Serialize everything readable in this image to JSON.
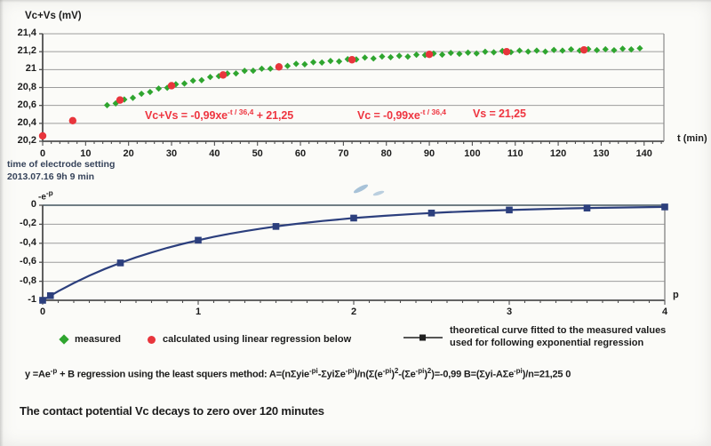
{
  "colors": {
    "measured_green": "#2fa52f",
    "calculated_red": "#e8353c",
    "curve_navy": "#2c3f7d",
    "eq_red": "#ee3540",
    "text": "#1c1c1c",
    "note_blue": "#36435a",
    "grid": "#9c9c9c",
    "axis": "#4f4f4f",
    "frame": "#8a8a8a",
    "dark_grid": "#5d6d75",
    "legend_line": "#1f1f1f",
    "smudge_blue": "#7aa3c6"
  },
  "chart_data": [
    {
      "type": "scatter",
      "title": "Vc+Vs (mV)",
      "xlabel": "t (min)",
      "ylabel": "Vc+Vs (mV)",
      "xlim": [
        0,
        145
      ],
      "ylim": [
        20.2,
        21.4
      ],
      "grid": true,
      "x_ticks": [
        0,
        10,
        20,
        30,
        40,
        50,
        60,
        70,
        80,
        90,
        100,
        110,
        120,
        130,
        140
      ],
      "x_tick_labels": [
        "0",
        "10",
        "20",
        "30",
        "40",
        "50",
        "60",
        "70",
        "80",
        "90",
        "100",
        "110",
        "120",
        "130",
        "140"
      ],
      "y_ticks": [
        21.4,
        21.2,
        21.0,
        20.8,
        20.6,
        20.4,
        20.2
      ],
      "y_tick_labels": [
        "21,4",
        "21,2",
        "21",
        "20,8",
        "20,6",
        "20,4",
        "20,2"
      ],
      "annotations": [
        {
          "pre": "Vc+Vs = -0,99xe",
          "sup": "-t / 36,4",
          "post": " + 21,25"
        },
        {
          "pre": "Vc = -0,99xe",
          "sup": "-t / 36,4",
          "post": ""
        },
        {
          "pre": "Vs = 21,25",
          "sup": "",
          "post": ""
        }
      ],
      "series": [
        {
          "name": "measured",
          "marker": "diamond",
          "color_key": "measured_green",
          "points": [
            [
              15,
              20.603
            ],
            [
              17,
              20.623
            ],
            [
              19,
              20.666
            ],
            [
              21,
              20.685
            ],
            [
              23,
              20.73
            ],
            [
              25,
              20.75
            ],
            [
              27,
              20.788
            ],
            [
              29,
              20.797
            ],
            [
              31,
              20.836
            ],
            [
              33,
              20.845
            ],
            [
              35,
              20.876
            ],
            [
              37,
              20.882
            ],
            [
              39,
              20.917
            ],
            [
              41,
              20.927
            ],
            [
              43,
              20.956
            ],
            [
              45,
              20.957
            ],
            [
              47,
              20.986
            ],
            [
              49,
              20.987
            ],
            [
              51,
              21.01
            ],
            [
              53,
              21.01
            ],
            [
              55,
              21.039
            ],
            [
              57,
              21.041
            ],
            [
              59,
              21.064
            ],
            [
              61,
              21.059
            ],
            [
              63,
              21.083
            ],
            [
              65,
              21.079
            ],
            [
              67,
              21.096
            ],
            [
              69,
              21.091
            ],
            [
              71,
              21.116
            ],
            [
              73,
              21.114
            ],
            [
              75,
              21.134
            ],
            [
              77,
              21.124
            ],
            [
              79,
              21.146
            ],
            [
              81,
              21.138
            ],
            [
              83,
              21.153
            ],
            [
              85,
              21.145
            ],
            [
              87,
              21.166
            ],
            [
              89,
              21.162
            ],
            [
              91,
              21.179
            ],
            [
              93,
              21.167
            ],
            [
              95,
              21.186
            ],
            [
              97,
              21.176
            ],
            [
              99,
              21.189
            ],
            [
              101,
              21.18
            ],
            [
              103,
              21.199
            ],
            [
              105,
              21.193
            ],
            [
              107,
              21.208
            ],
            [
              109,
              21.195
            ],
            [
              111,
              21.212
            ],
            [
              113,
              21.201
            ],
            [
              115,
              21.212
            ],
            [
              117,
              21.201
            ],
            [
              119,
              21.219
            ],
            [
              121,
              21.212
            ],
            [
              123,
              21.226
            ],
            [
              125,
              21.212
            ],
            [
              127,
              21.229
            ],
            [
              129,
              21.217
            ],
            [
              131,
              21.227
            ],
            [
              133,
              21.216
            ],
            [
              135,
              21.233
            ],
            [
              137,
              21.225
            ],
            [
              139,
              21.238
            ]
          ]
        },
        {
          "name": "calculated using linear regression below",
          "marker": "circle",
          "color_key": "calculated_red",
          "points": [
            [
              0,
              20.26
            ],
            [
              7,
              20.43
            ],
            [
              18,
              20.66
            ],
            [
              30,
              20.82
            ],
            [
              42,
              20.94
            ],
            [
              55,
              21.03
            ],
            [
              72,
              21.11
            ],
            [
              90,
              21.17
            ],
            [
              108,
              21.2
            ],
            [
              126,
              21.22
            ]
          ]
        }
      ]
    },
    {
      "type": "line",
      "title": "",
      "xlabel": "p",
      "ylabel": "-e^-p",
      "ylabel_rich": {
        "pre": "-e",
        "sup": "-p",
        "post": ""
      },
      "xlim": [
        0,
        4
      ],
      "ylim": [
        -1,
        0
      ],
      "grid": true,
      "x_ticks": [
        0,
        1,
        2,
        3,
        4
      ],
      "x_tick_labels": [
        "0",
        "1",
        "2",
        "3",
        "4"
      ],
      "y_ticks": [
        0,
        -0.2,
        -0.4,
        -0.6,
        -0.8,
        -1
      ],
      "y_tick_labels": [
        "0",
        "-0,2",
        "-0,4",
        "-0,6",
        "-0,8",
        "-1"
      ],
      "series": [
        {
          "name": "theoretical curve fitted to the measured values used for following exponential regression",
          "marker": "square",
          "color_key": "curve_navy",
          "curve": [
            [
              0,
              -1.0
            ],
            [
              0.1,
              -0.905
            ],
            [
              0.2,
              -0.819
            ],
            [
              0.3,
              -0.741
            ],
            [
              0.4,
              -0.67
            ],
            [
              0.5,
              -0.607
            ],
            [
              0.6,
              -0.549
            ],
            [
              0.7,
              -0.497
            ],
            [
              0.8,
              -0.449
            ],
            [
              0.9,
              -0.407
            ],
            [
              1.0,
              -0.368
            ],
            [
              1.1,
              -0.333
            ],
            [
              1.2,
              -0.301
            ],
            [
              1.3,
              -0.273
            ],
            [
              1.4,
              -0.247
            ],
            [
              1.5,
              -0.223
            ],
            [
              1.6,
              -0.202
            ],
            [
              1.7,
              -0.183
            ],
            [
              1.8,
              -0.165
            ],
            [
              1.9,
              -0.15
            ],
            [
              2.0,
              -0.135
            ],
            [
              2.2,
              -0.111
            ],
            [
              2.4,
              -0.091
            ],
            [
              2.6,
              -0.074
            ],
            [
              2.8,
              -0.061
            ],
            [
              3.0,
              -0.05
            ],
            [
              3.2,
              -0.041
            ],
            [
              3.4,
              -0.033
            ],
            [
              3.6,
              -0.027
            ],
            [
              3.8,
              -0.022
            ],
            [
              4.0,
              -0.018
            ]
          ],
          "marker_points": [
            [
              0,
              -1.0
            ],
            [
              0.05,
              -0.951
            ],
            [
              0.5,
              -0.607
            ],
            [
              1.0,
              -0.368
            ],
            [
              1.5,
              -0.223
            ],
            [
              2.0,
              -0.135
            ],
            [
              2.5,
              -0.082
            ],
            [
              3.0,
              -0.05
            ],
            [
              3.5,
              -0.03
            ],
            [
              4.0,
              -0.018
            ]
          ]
        }
      ]
    }
  ],
  "notes": {
    "line1": "time of electrode setting",
    "line2": "2013.07.16 9h 9 min"
  },
  "legend": {
    "measured": "measured",
    "calculated": "calculated using linear regression below",
    "theoretical_line1": "theoretical curve fitted to the measured values",
    "theoretical_line2": "used for following exponential regression"
  },
  "regression_formula": {
    "segments": [
      {
        "t": "y =Ae"
      },
      {
        "s": "-p"
      },
      {
        "t": " + B regression using the least squers method: A=(nΣyie"
      },
      {
        "s": "-pi"
      },
      {
        "t": "-ΣyiΣe"
      },
      {
        "s": "-pi"
      },
      {
        "t": ")/n(Σ(e"
      },
      {
        "s": "-pi"
      },
      {
        "t": ")"
      },
      {
        "s": "2"
      },
      {
        "t": "-(Σe"
      },
      {
        "s": "-pi"
      },
      {
        "t": ")"
      },
      {
        "s": "2"
      },
      {
        "t": ")=-0,99    B=(Σyi-AΣe"
      },
      {
        "s": "-pi"
      },
      {
        "t": ")/n=21,25 0"
      }
    ]
  },
  "caption": "The contact potential Vc decays to zero over 120 minutes"
}
